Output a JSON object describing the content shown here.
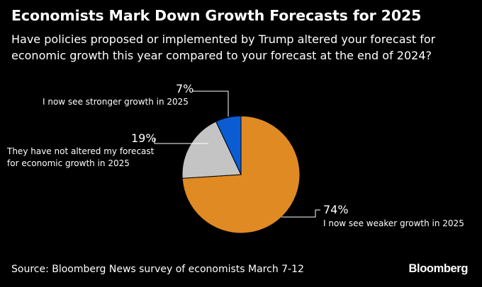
{
  "header": {
    "title": "Economists Mark Down Growth Forecasts for 2025",
    "subtitle": "Have policies proposed or implemented by Trump altered your forecast for economic growth this year compared to your forecast at the end of 2024?"
  },
  "footer": {
    "source": "Source: Bloomberg News survey of economists March 7-12",
    "brand": "Bloomberg"
  },
  "chart_data": {
    "type": "pie",
    "title": "Economists Mark Down Growth Forecasts for 2025",
    "slices": [
      {
        "label": "I now see weaker growth in 2025",
        "value": 74,
        "value_label": "74%",
        "color": "#E08A23"
      },
      {
        "label": "They have not altered my forecast for economic growth in 2025",
        "label_lines": [
          "They have not altered my forecast",
          "for economic growth in 2025"
        ],
        "value": 19,
        "value_label": "19%",
        "color": "#C4C4C4"
      },
      {
        "label": "I now see stronger growth in 2025",
        "value": 7,
        "value_label": "7%",
        "color": "#0B5BD3"
      }
    ],
    "legend": "none",
    "grid": false
  }
}
